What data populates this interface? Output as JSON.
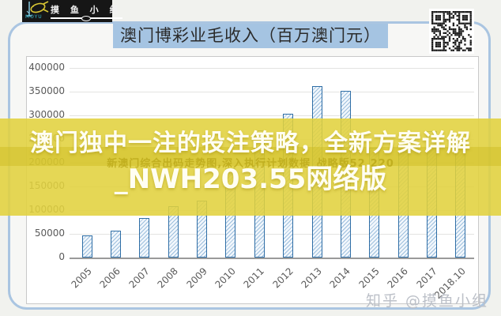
{
  "logo": {
    "brand": "摸 鱼 小 组",
    "sub": "MOYU",
    "fish_icon": "fish-on-hook-icon"
  },
  "header": {
    "title": "澳门博彩业毛收入（百万澳门元）"
  },
  "overlay": {
    "line1": "澳门独中一注的投注策略，全新方案详解",
    "line2": "_NWH203.55网络版",
    "fine_print": "新澳门综合出码走势图,深入执行计划数据_战略版52.220"
  },
  "watermark": {
    "text": "知乎 @摸鱼小组"
  },
  "icons": {
    "qr": "qr-code"
  },
  "colors": {
    "band_yellow": "#e1d13e",
    "band_core_yellow": "#c9b616",
    "title_bar_blue": "#a5c4e2",
    "card_border_blue": "#aac5e1",
    "bar_border_blue": "#2f6ea6",
    "bar_hatch_blue": "#9cbedd",
    "overlay_text": "#fffef2",
    "logo_bg": "#161616",
    "watermark_gray": "#bcc0c8"
  },
  "chart_data": {
    "type": "bar",
    "title": "澳门博彩业毛收入（百万澳门元）",
    "categories": [
      "2005",
      "2006",
      "2007",
      "2008",
      "2009",
      "2010",
      "2011",
      "2012",
      "2013",
      "2014",
      "2015",
      "2016",
      "2017",
      "2018.10"
    ],
    "values": [
      46000,
      57000,
      84000,
      108000,
      120000,
      188000,
      269000,
      304000,
      362000,
      352000,
      231000,
      223000,
      266000,
      249000
    ],
    "xlabel": "",
    "ylabel": "",
    "ylim": [
      0,
      400000
    ],
    "ytick_step": 50000,
    "yticks": [
      0,
      50000,
      100000,
      150000,
      200000,
      250000,
      300000,
      350000,
      400000
    ],
    "grid": true,
    "legend": "none",
    "bar_style": {
      "fill": "#f2f7fc",
      "hatch": "#9cbedd",
      "border": "#2f6ea6"
    }
  }
}
